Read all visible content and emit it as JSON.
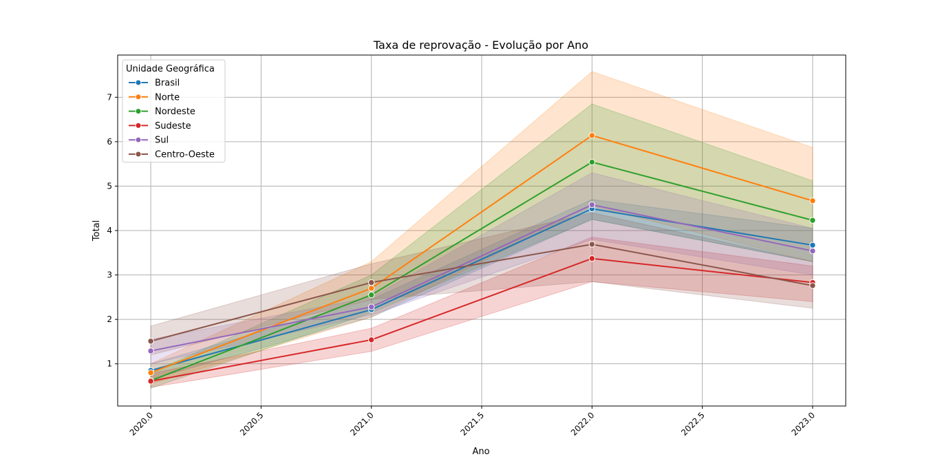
{
  "chart_data": {
    "type": "line",
    "title": "Taxa de reprovação - Evolução por Ano",
    "xlabel": "Ano",
    "ylabel": "Total",
    "x": [
      2020.0,
      2021.0,
      2022.0,
      2023.0
    ],
    "xlim": [
      2019.85,
      2023.15
    ],
    "ylim": [
      0.05,
      7.95
    ],
    "x_ticks": [
      2020.0,
      2020.5,
      2021.0,
      2021.5,
      2022.0,
      2022.5,
      2023.0
    ],
    "x_tick_labels": [
      "2020.0",
      "2020.5",
      "2021.0",
      "2021.5",
      "2022.0",
      "2022.5",
      "2023.0"
    ],
    "y_ticks": [
      1,
      2,
      3,
      4,
      5,
      6,
      7
    ],
    "y_tick_labels": [
      "1",
      "2",
      "3",
      "4",
      "5",
      "6",
      "7"
    ],
    "grid": true,
    "legend": {
      "title": "Unidade Geográfica",
      "placement": "top-left"
    },
    "series": [
      {
        "name": "Brasil",
        "color": "#1f77b4",
        "values": [
          0.85,
          2.22,
          4.49,
          3.67
        ],
        "ci_lower": [
          0.65,
          2.05,
          4.25,
          3.3
        ],
        "ci_upper": [
          1.0,
          2.45,
          4.7,
          4.05
        ]
      },
      {
        "name": "Norte",
        "color": "#ff7f0e",
        "values": [
          0.8,
          2.7,
          6.14,
          4.67
        ],
        "ci_lower": [
          0.55,
          2.05,
          4.55,
          3.3
        ],
        "ci_upper": [
          1.0,
          3.3,
          7.58,
          5.87
        ]
      },
      {
        "name": "Nordeste",
        "color": "#2ca02c",
        "values": [
          0.62,
          2.55,
          5.54,
          4.23
        ],
        "ci_lower": [
          0.45,
          2.15,
          4.25,
          3.3
        ],
        "ci_upper": [
          0.8,
          3.0,
          6.85,
          5.12
        ]
      },
      {
        "name": "Sudeste",
        "color": "#d62728",
        "values": [
          0.61,
          1.54,
          3.37,
          2.83
        ],
        "ci_lower": [
          0.47,
          1.28,
          2.85,
          2.4
        ],
        "ci_upper": [
          0.78,
          1.8,
          3.85,
          3.2
        ]
      },
      {
        "name": "Sul",
        "color": "#9467bd",
        "values": [
          1.29,
          2.28,
          4.58,
          3.54
        ],
        "ci_lower": [
          1.0,
          2.1,
          3.8,
          3.0
        ],
        "ci_upper": [
          1.55,
          2.5,
          5.3,
          4.05
        ]
      },
      {
        "name": "Centro-Oeste",
        "color": "#8c564b",
        "values": [
          1.51,
          2.83,
          3.69,
          2.76
        ],
        "ci_lower": [
          1.2,
          2.45,
          2.85,
          2.25
        ],
        "ci_upper": [
          1.85,
          3.25,
          4.4,
          3.3
        ]
      }
    ]
  }
}
